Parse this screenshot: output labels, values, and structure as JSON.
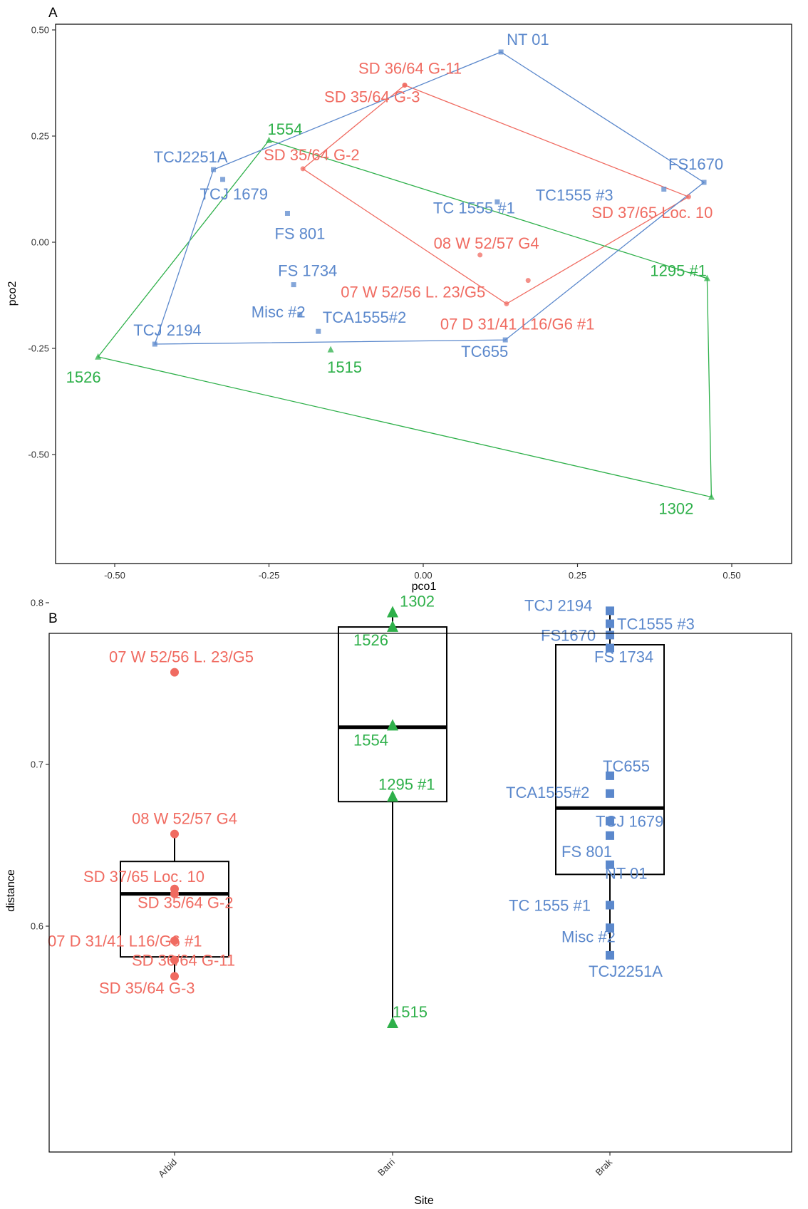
{
  "colors": {
    "Arbid": "#f06b61",
    "Barri": "#2eb04a",
    "Brak": "#5b88cc"
  },
  "chart_data": [
    {
      "panel": "A",
      "type": "scatter",
      "xlabel": "pco1",
      "ylabel": "pco2",
      "xlim": [
        -0.58,
        0.52
      ],
      "ylim": [
        -0.65,
        0.51
      ],
      "xticks": [
        "-0.50",
        "-0.25",
        "0.00",
        "0.25",
        "0.50"
      ],
      "yticks": [
        "0.50",
        "0.25",
        "0.00",
        "-0.25",
        "-0.50"
      ],
      "grid": false,
      "hull_groups": [
        "Arbid",
        "Barri",
        "Brak"
      ],
      "points": [
        {
          "label": "NT 01",
          "group": "Brak",
          "x": 0.126,
          "y": 0.448
        },
        {
          "label": "FS1670",
          "group": "Brak",
          "x": 0.455,
          "y": 0.141
        },
        {
          "label": "TC1555 #3",
          "group": "Brak",
          "x": 0.39,
          "y": 0.125
        },
        {
          "label": "TCJ2251A",
          "group": "Brak",
          "x": -0.34,
          "y": 0.171
        },
        {
          "label": "TCJ 1679",
          "group": "Brak",
          "x": -0.325,
          "y": 0.148
        },
        {
          "label": "FS 801",
          "group": "Brak",
          "x": -0.22,
          "y": 0.068
        },
        {
          "label": "TC 1555 #1",
          "group": "Brak",
          "x": 0.12,
          "y": 0.095
        },
        {
          "label": "FS 1734",
          "group": "Brak",
          "x": -0.21,
          "y": -0.1
        },
        {
          "label": "Misc #2",
          "group": "Brak",
          "x": -0.2,
          "y": -0.17
        },
        {
          "label": "TCA1555#2",
          "group": "Brak",
          "x": -0.17,
          "y": -0.21
        },
        {
          "label": "TCJ 2194",
          "group": "Brak",
          "x": -0.435,
          "y": -0.24
        },
        {
          "label": "TC655",
          "group": "Brak",
          "x": 0.133,
          "y": -0.23
        },
        {
          "label": "SD 36/64 G-11",
          "group": "Arbid",
          "x": -0.03,
          "y": 0.37
        },
        {
          "label": "SD 35/64 G-3",
          "group": "Arbid",
          "x": -0.03,
          "y": 0.37
        },
        {
          "label": "SD 35/64 G-2",
          "group": "Arbid",
          "x": -0.195,
          "y": 0.173
        },
        {
          "label": "SD 37/65 Loc. 10",
          "group": "Arbid",
          "x": 0.43,
          "y": 0.107
        },
        {
          "label": "08 W 52/57 G4",
          "group": "Arbid",
          "x": 0.092,
          "y": -0.03
        },
        {
          "label": "07 W 52/56 L. 23/G5",
          "group": "Arbid",
          "x": 0.17,
          "y": -0.09
        },
        {
          "label": "07 D 31/41 L16/G6 #1",
          "group": "Arbid",
          "x": 0.135,
          "y": -0.145
        },
        {
          "label": "1554",
          "group": "Barri",
          "x": -0.25,
          "y": 0.24
        },
        {
          "label": "1295 #1",
          "group": "Barri",
          "x": 0.46,
          "y": -0.085
        },
        {
          "label": "1515",
          "group": "Barri",
          "x": -0.15,
          "y": -0.253
        },
        {
          "label": "1526",
          "group": "Barri",
          "x": -0.527,
          "y": -0.27
        },
        {
          "label": "1302",
          "group": "Barri",
          "x": 0.467,
          "y": -0.6
        }
      ]
    },
    {
      "panel": "B",
      "type": "box",
      "xlabel": "Site",
      "ylabel": "distance",
      "categories": [
        "Arbid",
        "Barri",
        "Brak"
      ],
      "ylim": [
        0.525,
        0.806
      ],
      "yticks": [
        "0.8",
        "0.7",
        "0.6"
      ],
      "grid": false,
      "boxes": [
        {
          "site": "Arbid",
          "q1": 0.581,
          "median": 0.62,
          "q3": 0.64,
          "whisker_low": 0.569,
          "whisker_high": 0.657
        },
        {
          "site": "Barri",
          "q1": 0.677,
          "median": 0.723,
          "q3": 0.785,
          "whisker_low": 0.54,
          "whisker_high": 0.794
        },
        {
          "site": "Brak",
          "q1": 0.632,
          "median": 0.673,
          "q3": 0.774,
          "whisker_low": 0.581,
          "whisker_high": 0.795
        }
      ],
      "points": [
        {
          "label": "07 W 52/56 L. 23/G5",
          "site": "Arbid",
          "y": 0.757
        },
        {
          "label": "08 W 52/57 G4",
          "site": "Arbid",
          "y": 0.657
        },
        {
          "label": "SD 37/65 Loc. 10",
          "site": "Arbid",
          "y": 0.623
        },
        {
          "label": "SD 35/64 G-2",
          "site": "Arbid",
          "y": 0.62
        },
        {
          "label": "07 D 31/41 L16/G6 #1",
          "site": "Arbid",
          "y": 0.591
        },
        {
          "label": "SD 36/64 G-11",
          "site": "Arbid",
          "y": 0.579
        },
        {
          "label": "SD 35/64 G-3",
          "site": "Arbid",
          "y": 0.569
        },
        {
          "label": "1302",
          "site": "Barri",
          "y": 0.794
        },
        {
          "label": "1526",
          "site": "Barri",
          "y": 0.785
        },
        {
          "label": "1554",
          "site": "Barri",
          "y": 0.724
        },
        {
          "label": "1295 #1",
          "site": "Barri",
          "y": 0.68
        },
        {
          "label": "1515",
          "site": "Barri",
          "y": 0.54
        },
        {
          "label": "TCJ 2194",
          "site": "Brak",
          "y": 0.795
        },
        {
          "label": "TC1555 #3",
          "site": "Brak",
          "y": 0.787
        },
        {
          "label": "FS1670",
          "site": "Brak",
          "y": 0.78
        },
        {
          "label": "FS 1734",
          "site": "Brak",
          "y": 0.772
        },
        {
          "label": "TC655",
          "site": "Brak",
          "y": 0.693
        },
        {
          "label": "TCA1555#2",
          "site": "Brak",
          "y": 0.682
        },
        {
          "label": "TCJ 1679",
          "site": "Brak",
          "y": 0.665
        },
        {
          "label": "FS 801",
          "site": "Brak",
          "y": 0.656
        },
        {
          "label": "NT 01",
          "site": "Brak",
          "y": 0.638
        },
        {
          "label": "TC 1555 #1",
          "site": "Brak",
          "y": 0.613
        },
        {
          "label": "Misc #2",
          "site": "Brak",
          "y": 0.599
        },
        {
          "label": "TCJ2251A",
          "site": "Brak",
          "y": 0.582
        }
      ]
    }
  ]
}
